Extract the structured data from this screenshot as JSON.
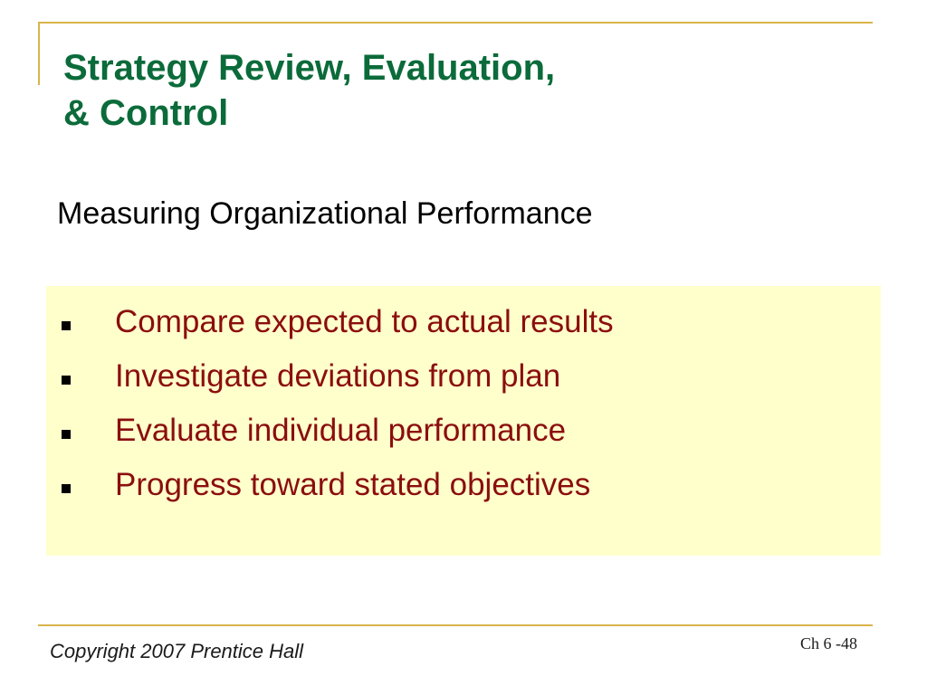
{
  "colors": {
    "accent_gold": "#d9b44a",
    "title_green": "#0b6b3a",
    "bullet_text_red": "#8b0e0e",
    "content_background": "#ffffcc"
  },
  "slide": {
    "title_lines": [
      "Strategy Review, Evaluation,",
      "& Control"
    ],
    "subtitle": "Measuring Organizational Performance",
    "bullets": [
      "Compare expected to actual results",
      "Investigate deviations from plan",
      "Evaluate individual performance",
      "Progress toward stated objectives"
    ],
    "bullet_marker_icon": "black-square-icon"
  },
  "footer": {
    "copyright": "Copyright 2007 Prentice Hall",
    "page_label": "Ch 6 -48"
  }
}
